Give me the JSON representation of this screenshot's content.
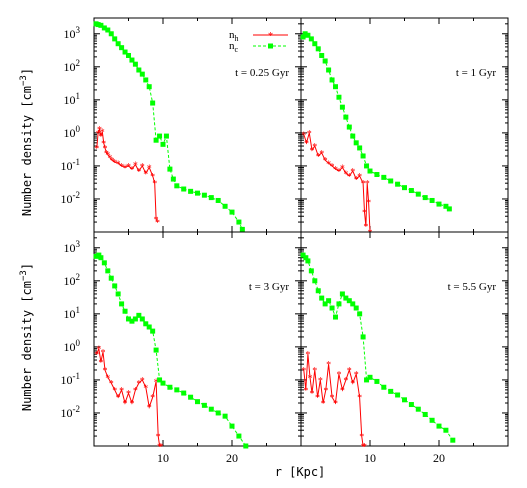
{
  "figure": {
    "ylabel_text": "Number density",
    "ylabel_unit": "[cm",
    "ylabel_exp": "−3",
    "ylabel_close": "]",
    "xlabel": "r [Kpc]",
    "colors": {
      "hot": "#ff0000",
      "cold": "#00ff00"
    },
    "legend": {
      "hot_main": "n",
      "hot_sub": "h",
      "cold_main": "n",
      "cold_sub": "c"
    }
  },
  "chart_data": [
    {
      "type": "line",
      "panel": "top-left",
      "annotation": "t = 0.25 Gyr",
      "xlim": [
        0,
        30
      ],
      "ylim": [
        0.001,
        3000
      ],
      "yscale": "log",
      "xticks": [
        10,
        20
      ],
      "xticklabels": [
        "",
        ""
      ],
      "yticks": [
        0.01,
        0.1,
        1,
        10,
        100,
        1000
      ],
      "yticklabels": [
        [
          "10",
          "-2"
        ],
        [
          "10",
          "-1"
        ],
        [
          "10",
          "0"
        ],
        [
          "10",
          "1"
        ],
        [
          "10",
          "2"
        ],
        [
          "10",
          "3"
        ]
      ],
      "legend_position": "top-right",
      "series": [
        {
          "name": "n_h",
          "x": [
            0.4,
            0.6,
            0.8,
            1.0,
            1.2,
            1.4,
            1.6,
            1.8,
            2.0,
            2.3,
            2.6,
            3.0,
            3.5,
            4.0,
            4.5,
            5.0,
            5.5,
            6.0,
            6.5,
            7.0,
            7.5,
            8.0,
            8.5,
            8.8,
            9.0,
            9.2
          ],
          "y": [
            0.35,
            1.0,
            1.3,
            0.8,
            1.1,
            0.5,
            0.35,
            0.25,
            0.22,
            0.18,
            0.15,
            0.13,
            0.12,
            0.1,
            0.09,
            0.1,
            0.08,
            0.11,
            0.07,
            0.1,
            0.06,
            0.09,
            0.05,
            0.03,
            0.0025,
            0.002
          ]
        },
        {
          "name": "n_c",
          "x": [
            0.3,
            0.6,
            1.0,
            1.5,
            2.0,
            2.5,
            3.0,
            3.5,
            4.0,
            4.5,
            5.0,
            5.5,
            6.0,
            6.5,
            7.0,
            7.5,
            8.0,
            8.5,
            9.0,
            9.5,
            10.0,
            10.5,
            11.0,
            11.5,
            12.0,
            13.0,
            14.0,
            15.0,
            16.0,
            17.0,
            18.0,
            19.0,
            20.0,
            21.0,
            21.5
          ],
          "y": [
            2000,
            1900,
            1800,
            1500,
            1300,
            1000,
            700,
            500,
            380,
            280,
            220,
            160,
            120,
            80,
            60,
            40,
            25,
            8,
            0.6,
            0.8,
            0.45,
            0.8,
            0.08,
            0.04,
            0.025,
            0.02,
            0.017,
            0.015,
            0.013,
            0.011,
            0.009,
            0.006,
            0.004,
            0.002,
            0.0012
          ]
        }
      ]
    },
    {
      "type": "line",
      "panel": "top-right",
      "annotation": "t = 1 Gyr",
      "xlim": [
        0,
        30
      ],
      "ylim": [
        0.001,
        3000
      ],
      "yscale": "log",
      "xticks": [
        10,
        20
      ],
      "xticklabels": [
        "",
        ""
      ],
      "yticks": [
        0.01,
        0.1,
        1,
        10,
        100,
        1000
      ],
      "yticklabels": [
        [
          "",
          "",
          ""
        ],
        [
          "",
          "",
          ""
        ],
        [
          "",
          "",
          ""
        ],
        [
          "",
          "",
          ""
        ],
        [
          "",
          "",
          ""
        ],
        [
          "",
          "",
          ""
        ]
      ],
      "series": [
        {
          "name": "n_h",
          "x": [
            0.4,
            0.8,
            1.2,
            1.6,
            2.0,
            2.5,
            3.0,
            3.5,
            4.0,
            4.5,
            5.0,
            5.5,
            6.0,
            6.5,
            7.0,
            7.5,
            8.0,
            8.5,
            9.0,
            9.2,
            9.4,
            9.6,
            9.8,
            10.0
          ],
          "y": [
            0.9,
            0.5,
            1.0,
            0.3,
            0.4,
            0.2,
            0.25,
            0.15,
            0.12,
            0.1,
            0.08,
            0.07,
            0.09,
            0.06,
            0.05,
            0.07,
            0.04,
            0.05,
            0.03,
            0.004,
            0.0015,
            0.03,
            0.008,
            0.001
          ]
        },
        {
          "name": "n_c",
          "x": [
            0.3,
            0.6,
            1.0,
            1.5,
            2.0,
            2.5,
            3.0,
            3.5,
            4.0,
            4.5,
            5.0,
            5.5,
            6.0,
            6.5,
            7.0,
            7.5,
            8.0,
            8.5,
            9.0,
            9.5,
            10.0,
            11.0,
            12.0,
            13.0,
            14.0,
            15.0,
            16.0,
            17.0,
            18.0,
            19.0,
            20.0,
            21.0,
            21.5
          ],
          "y": [
            800,
            1000,
            900,
            700,
            500,
            350,
            220,
            150,
            80,
            40,
            25,
            12,
            6,
            3,
            1.5,
            0.8,
            0.5,
            0.35,
            0.2,
            0.1,
            0.07,
            0.055,
            0.045,
            0.035,
            0.028,
            0.022,
            0.018,
            0.014,
            0.011,
            0.009,
            0.007,
            0.006,
            0.005
          ]
        }
      ]
    },
    {
      "type": "line",
      "panel": "bottom-left",
      "annotation": "t = 3 Gyr",
      "xlim": [
        0,
        30
      ],
      "ylim": [
        0.001,
        3000
      ],
      "yscale": "log",
      "xticks": [
        10,
        20
      ],
      "xticklabels": [
        "10",
        "20"
      ],
      "yticks": [
        0.01,
        0.1,
        1,
        10,
        100,
        1000
      ],
      "yticklabels": [
        [
          "10",
          "-2"
        ],
        [
          "10",
          "-1"
        ],
        [
          "10",
          "0"
        ],
        [
          "10",
          "1"
        ],
        [
          "10",
          "2"
        ],
        [
          "10",
          "3"
        ]
      ],
      "series": [
        {
          "name": "n_h",
          "x": [
            0.4,
            0.7,
            1.0,
            1.3,
            1.6,
            2.0,
            2.5,
            3.0,
            3.5,
            4.0,
            4.5,
            5.0,
            5.5,
            6.0,
            6.5,
            7.0,
            7.5,
            8.0,
            8.5,
            9.0,
            9.3,
            9.5,
            9.7
          ],
          "y": [
            0.6,
            0.9,
            0.35,
            0.7,
            0.2,
            0.12,
            0.08,
            0.05,
            0.03,
            0.05,
            0.02,
            0.04,
            0.02,
            0.05,
            0.08,
            0.1,
            0.06,
            0.015,
            0.03,
            0.09,
            0.002,
            0.001,
            0.0006
          ]
        },
        {
          "name": "n_c",
          "x": [
            0.3,
            0.7,
            1.0,
            1.5,
            2.0,
            2.5,
            3.0,
            3.5,
            4.0,
            4.5,
            5.0,
            5.5,
            6.0,
            6.5,
            7.0,
            7.5,
            8.0,
            8.5,
            9.0,
            9.5,
            10.0,
            11.0,
            12.0,
            13.0,
            14.0,
            15.0,
            16.0,
            17.0,
            18.0,
            19.0,
            20.0,
            21.0,
            22.0
          ],
          "y": [
            550,
            600,
            500,
            350,
            200,
            120,
            70,
            40,
            20,
            12,
            7,
            6,
            7,
            9,
            7,
            5,
            4,
            3,
            0.8,
            0.1,
            0.08,
            0.06,
            0.05,
            0.04,
            0.03,
            0.022,
            0.017,
            0.013,
            0.01,
            0.008,
            0.004,
            0.002,
            0.001
          ]
        }
      ]
    },
    {
      "type": "line",
      "panel": "bottom-right",
      "annotation": "t = 5.5 Gyr",
      "xlim": [
        0,
        30
      ],
      "ylim": [
        0.001,
        3000
      ],
      "yscale": "log",
      "xticks": [
        10,
        20
      ],
      "xticklabels": [
        "10",
        "20"
      ],
      "yticks": [
        0.01,
        0.1,
        1,
        10,
        100,
        1000
      ],
      "yticklabels": [
        [
          "",
          "",
          ""
        ],
        [
          "",
          "",
          ""
        ],
        [
          "",
          "",
          ""
        ],
        [
          "",
          "",
          ""
        ],
        [
          "",
          "",
          ""
        ],
        [
          "",
          "",
          ""
        ]
      ],
      "series": [
        {
          "name": "n_h",
          "x": [
            0.4,
            0.7,
            1.0,
            1.3,
            1.6,
            2.0,
            2.4,
            2.8,
            3.2,
            3.6,
            4.0,
            4.5,
            5.0,
            5.5,
            6.0,
            6.5,
            7.0,
            7.5,
            8.0,
            8.5,
            8.8,
            9.0,
            9.2
          ],
          "y": [
            0.2,
            0.05,
            0.6,
            0.12,
            0.04,
            0.2,
            0.03,
            0.1,
            0.02,
            0.05,
            0.3,
            0.03,
            0.02,
            0.15,
            0.05,
            0.1,
            0.2,
            0.08,
            0.15,
            0.03,
            0.002,
            0.0008,
            0.001
          ]
        },
        {
          "name": "n_c",
          "x": [
            0.3,
            0.7,
            1.0,
            1.5,
            2.0,
            2.5,
            3.0,
            3.5,
            4.0,
            4.5,
            5.0,
            5.5,
            6.0,
            6.5,
            7.0,
            7.5,
            8.0,
            8.5,
            9.0,
            9.5,
            10.0,
            11.0,
            12.0,
            13.0,
            14.0,
            15.0,
            16.0,
            17.0,
            18.0,
            19.0,
            20.0,
            21.0,
            22.0
          ],
          "y": [
            600,
            500,
            400,
            200,
            100,
            50,
            30,
            20,
            25,
            15,
            8,
            20,
            40,
            30,
            25,
            20,
            15,
            10,
            2,
            0.1,
            0.12,
            0.09,
            0.06,
            0.045,
            0.035,
            0.025,
            0.018,
            0.013,
            0.009,
            0.006,
            0.004,
            0.003,
            0.0015
          ]
        }
      ]
    }
  ]
}
